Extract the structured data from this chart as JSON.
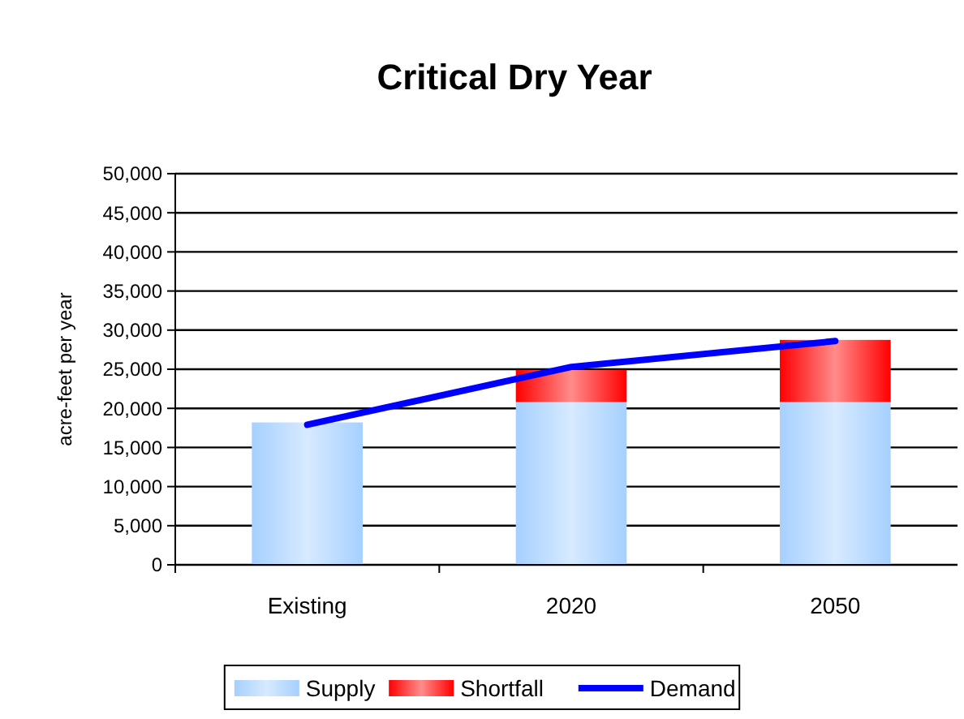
{
  "chart_data": {
    "type": "bar",
    "title": "Critical Dry Year",
    "ylabel": "acre-feet per year",
    "categories": [
      "Existing",
      "2020",
      "2050"
    ],
    "stacked": true,
    "series": [
      {
        "name": "Supply",
        "color": "#a6d0ff",
        "values": [
          18200,
          20800,
          20800
        ]
      },
      {
        "name": "Shortfall",
        "color": "#ff0000",
        "values": [
          0,
          4100,
          7950
        ]
      },
      {
        "name": "Demand",
        "type": "line",
        "color": "#0000ff",
        "values": [
          17900,
          25300,
          28600
        ]
      }
    ],
    "ylim": [
      0,
      50000
    ],
    "yticks": [
      {
        "value": 0,
        "label": "0"
      },
      {
        "value": 5000,
        "label": "5,000"
      },
      {
        "value": 10000,
        "label": "10,000"
      },
      {
        "value": 15000,
        "label": "15,000"
      },
      {
        "value": 20000,
        "label": "20,000"
      },
      {
        "value": 25000,
        "label": "25,000"
      },
      {
        "value": 30000,
        "label": "30,000"
      },
      {
        "value": 35000,
        "label": "35,000"
      },
      {
        "value": 40000,
        "label": "40,000"
      },
      {
        "value": 45000,
        "label": "45,000"
      },
      {
        "value": 50000,
        "label": "50,000"
      }
    ],
    "grid": "y",
    "legend": "bottom",
    "marker": "none"
  }
}
